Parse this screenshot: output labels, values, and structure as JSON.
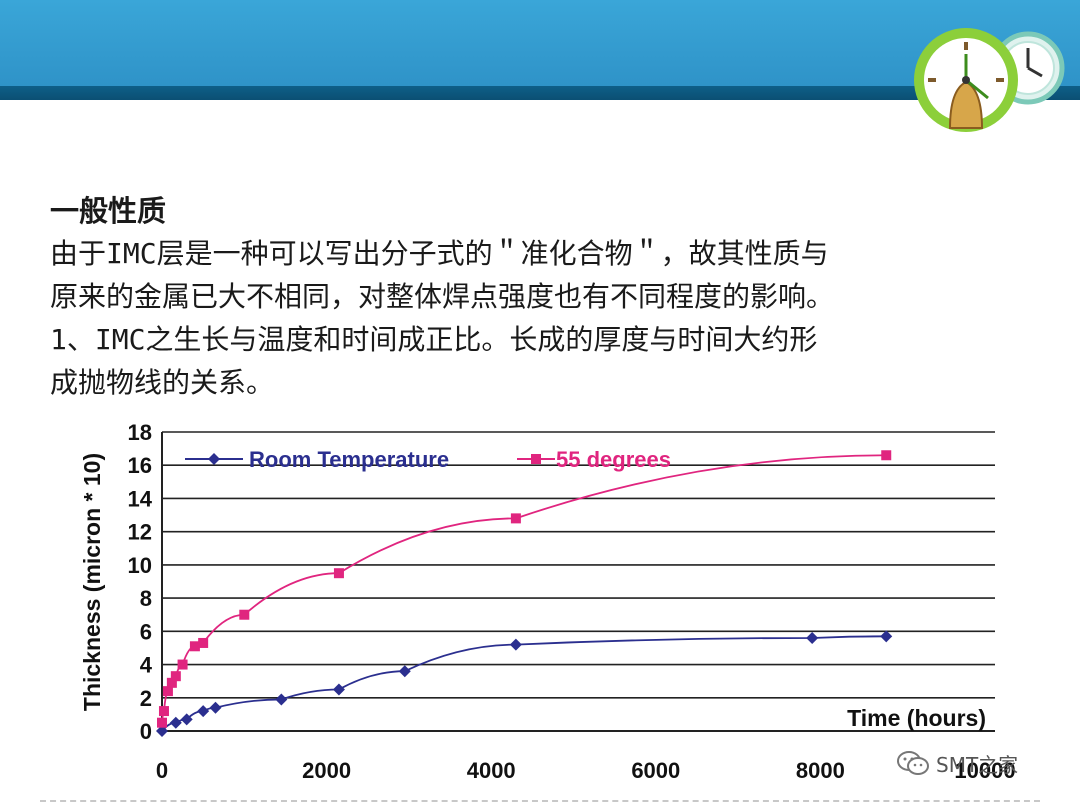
{
  "slide": {
    "heading": "一般性质",
    "paragraph_lines": [
      "由于IMC层是一种可以写出分子式的＂准化合物＂，故其性质与",
      "原来的金属已大不相同，对整体焊点强度也有不同程度的影响。",
      "1、IMC之生长与温度和时间成正比。长成的厚度与时间大约形",
      "成抛物线的关系。"
    ],
    "watermark": "SMT之家"
  },
  "colors": {
    "header_band": "#2f93c8",
    "header_rule": "#0b4f73",
    "series_room": "#2b2f8f",
    "series_55": "#e0257f"
  },
  "chart_data": {
    "type": "line",
    "title": "",
    "xlabel": "Time (hours)",
    "ylabel": "Thickness (micron * 10)",
    "xlim": [
      0,
      10000
    ],
    "ylim": [
      0,
      18
    ],
    "x_ticks": [
      "0",
      "2000",
      "4000",
      "6000",
      "8000",
      "10000"
    ],
    "y_ticks": [
      "0",
      "2",
      "4",
      "6",
      "8",
      "10",
      "12",
      "14",
      "16",
      "18"
    ],
    "grid": "horizontal",
    "legend": "top-left",
    "series": [
      {
        "name": "Room Temperature",
        "marker": "diamond",
        "color": "#2b2f8f",
        "points": [
          [
            0,
            0
          ],
          [
            168,
            0.5
          ],
          [
            300,
            0.7
          ],
          [
            500,
            1.2
          ],
          [
            650,
            1.4
          ],
          [
            1450,
            1.9
          ],
          [
            2150,
            2.5
          ],
          [
            2950,
            3.6
          ],
          [
            4300,
            5.2
          ],
          [
            7900,
            5.6
          ],
          [
            8800,
            5.7
          ]
        ]
      },
      {
        "name": "55 degrees",
        "marker": "square",
        "color": "#e0257f",
        "points": [
          [
            0,
            0.5
          ],
          [
            24,
            1.2
          ],
          [
            72,
            2.4
          ],
          [
            120,
            2.9
          ],
          [
            168,
            3.3
          ],
          [
            250,
            4.0
          ],
          [
            400,
            5.1
          ],
          [
            500,
            5.3
          ],
          [
            1000,
            7.0
          ],
          [
            2150,
            9.5
          ],
          [
            4300,
            12.8
          ],
          [
            8800,
            16.6
          ]
        ]
      }
    ]
  }
}
